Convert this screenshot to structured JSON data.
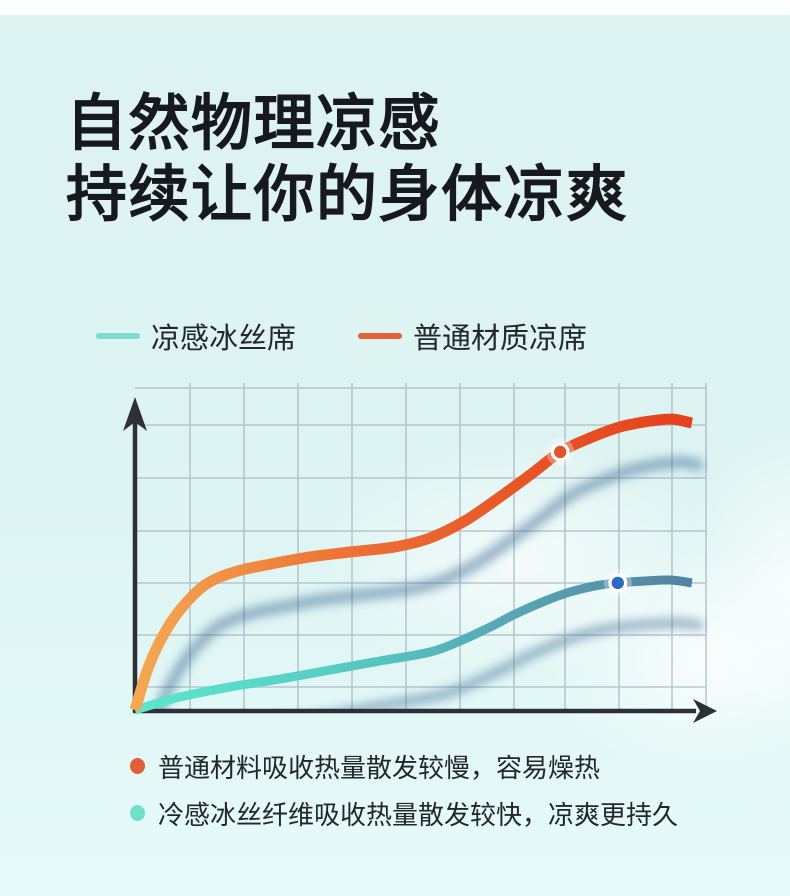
{
  "header": {
    "title_line1": "自然物理凉感",
    "title_line2": "持续让你的身体凉爽"
  },
  "legend": {
    "items": [
      {
        "label": "凉感冰丝席",
        "color": "#7adcd2"
      },
      {
        "label": "普通材质凉席",
        "color": "#e2603a"
      }
    ]
  },
  "notes": {
    "items": [
      {
        "text": "普通材料吸收热量散发较慢，容易燥热",
        "color": "#e25f38"
      },
      {
        "text": "冷感冰丝纤维吸收热量散发较快，凉爽更持久",
        "color": "#6fdfc8"
      }
    ]
  },
  "colors": {
    "background": "#def3f1",
    "top_strip": "#ffffff",
    "grid": "#97a8b1",
    "axis": "#2b3137",
    "title_text": "#17191d",
    "body_text": "#23272b"
  },
  "chart_data": {
    "type": "line",
    "title": "",
    "xlabel": "",
    "ylabel": "",
    "x_range": [
      0,
      1
    ],
    "y_range": [
      0,
      1
    ],
    "grid": "on",
    "tick_labels": "none",
    "axis_arrows": true,
    "legend_position": "above-chart",
    "series": [
      {
        "name": "凉感冰丝席",
        "role": "ice-silk-cooling-mat",
        "line_width": 9,
        "gradient": [
          "#5ce7ce",
          "#55cfc4",
          "#57a6b3",
          "#527f9f"
        ],
        "points": [
          [
            0,
            0
          ],
          [
            0.079,
            0.04
          ],
          [
            0.167,
            0.071
          ],
          [
            0.254,
            0.095
          ],
          [
            0.342,
            0.123
          ],
          [
            0.43,
            0.151
          ],
          [
            0.517,
            0.178
          ],
          [
            0.57,
            0.212
          ],
          [
            0.623,
            0.255
          ],
          [
            0.667,
            0.295
          ],
          [
            0.719,
            0.335
          ],
          [
            0.763,
            0.363
          ],
          [
            0.807,
            0.382
          ],
          [
            0.847,
            0.391
          ],
          [
            0.895,
            0.397
          ],
          [
            0.939,
            0.4
          ],
          [
            0.977,
            0.391
          ]
        ],
        "marker": {
          "x": 0.847,
          "y": 0.391,
          "color": "#2a6cc0"
        }
      },
      {
        "name": "普通材质凉席",
        "role": "ordinary-material-mat",
        "line_width": 11,
        "gradient": [
          "#f4a853",
          "#ee7636",
          "#e85527",
          "#e63f1c"
        ],
        "points": [
          [
            0,
            0
          ],
          [
            0.023,
            0.129
          ],
          [
            0.047,
            0.222
          ],
          [
            0.079,
            0.308
          ],
          [
            0.123,
            0.385
          ],
          [
            0.175,
            0.425
          ],
          [
            0.237,
            0.449
          ],
          [
            0.307,
            0.471
          ],
          [
            0.377,
            0.486
          ],
          [
            0.456,
            0.502
          ],
          [
            0.517,
            0.529
          ],
          [
            0.579,
            0.582
          ],
          [
            0.64,
            0.655
          ],
          [
            0.702,
            0.735
          ],
          [
            0.746,
            0.794
          ],
          [
            0.798,
            0.837
          ],
          [
            0.851,
            0.871
          ],
          [
            0.903,
            0.889
          ],
          [
            0.942,
            0.895
          ],
          [
            0.977,
            0.883
          ]
        ],
        "marker": {
          "x": 0.746,
          "y": 0.794,
          "color": "#e0542a"
        }
      }
    ],
    "shadow": {
      "color": "#33608f",
      "opacity": 0.5,
      "dx": 11,
      "dy": 43,
      "blur": 5
    }
  }
}
